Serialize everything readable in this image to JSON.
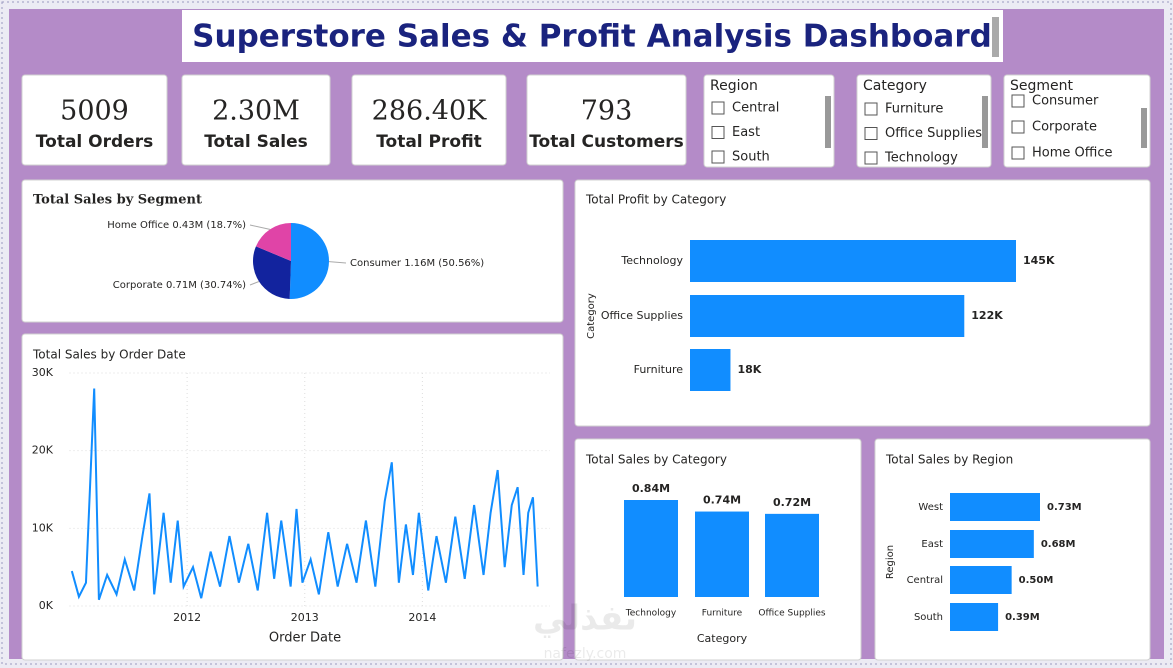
{
  "header": {
    "title": "Superstore Sales & Profit Analysis Dashboard"
  },
  "kpis": [
    {
      "value": "5009",
      "label": "Total Orders"
    },
    {
      "value": "2.30M",
      "label": "Total Sales"
    },
    {
      "value": "286.40K",
      "label": "Total Profit"
    },
    {
      "value": "793",
      "label": "Total Customers"
    }
  ],
  "slicers": [
    {
      "title": "Region",
      "options": [
        "Central",
        "East",
        "South"
      ]
    },
    {
      "title": "Category",
      "options": [
        "Furniture",
        "Office Supplies",
        "Technology"
      ]
    },
    {
      "title": "Segment",
      "options": [
        "Consumer",
        "Corporate",
        "Home Office"
      ]
    }
  ],
  "chart_data": [
    {
      "type": "pie",
      "title": "Total Sales by Segment",
      "categories": [
        "Consumer",
        "Corporate",
        "Home Office"
      ],
      "values": [
        50.56,
        30.74,
        18.7
      ],
      "value_labels": [
        "1.16M (50.56%)",
        "0.71M (30.74%)",
        "0.43M (18.7%)"
      ],
      "colors": [
        "#118DFF",
        "#12239E",
        "#E044A7"
      ]
    },
    {
      "type": "line",
      "title": "Total Sales by Order Date",
      "xlabel": "Order Date",
      "x": [
        2011.02,
        2011.08,
        2011.14,
        2011.21,
        2011.25,
        2011.32,
        2011.4,
        2011.47,
        2011.55,
        2011.62,
        2011.68,
        2011.72,
        2011.8,
        2011.86,
        2011.92,
        2011.97,
        2012.05,
        2012.12,
        2012.2,
        2012.28,
        2012.36,
        2012.44,
        2012.52,
        2012.6,
        2012.68,
        2012.74,
        2012.8,
        2012.88,
        2012.93,
        2012.98,
        2013.05,
        2013.12,
        2013.2,
        2013.28,
        2013.36,
        2013.44,
        2013.52,
        2013.6,
        2013.68,
        2013.74,
        2013.8,
        2013.86,
        2013.92,
        2013.97,
        2014.05,
        2014.12,
        2014.2,
        2014.28,
        2014.36,
        2014.44,
        2014.52,
        2014.58,
        2014.64,
        2014.7,
        2014.76,
        2014.81,
        2014.86,
        2014.9,
        2014.94,
        2014.98
      ],
      "values": [
        4500,
        1200,
        3000,
        28000,
        800,
        4000,
        1500,
        6000,
        2000,
        9000,
        14500,
        1500,
        12000,
        3000,
        11000,
        2500,
        5000,
        1000,
        7000,
        2500,
        9000,
        3000,
        8000,
        2000,
        12000,
        3500,
        11000,
        2500,
        12500,
        3000,
        6000,
        1500,
        9500,
        2500,
        8000,
        3000,
        11000,
        2500,
        13500,
        18500,
        3000,
        10500,
        4000,
        12000,
        2000,
        9000,
        3000,
        11500,
        3500,
        13000,
        4000,
        12000,
        17500,
        5000,
        13000,
        15300,
        4000,
        12000,
        14000,
        2500
      ],
      "color": "#118DFF",
      "xlim": [
        2011,
        2015
      ],
      "ylim": [
        0,
        30000
      ],
      "xticks": [
        2012,
        2013,
        2014
      ],
      "yticks": [
        {
          "value": 0,
          "label": "0K"
        },
        {
          "value": 10000,
          "label": "10K"
        },
        {
          "value": 20000,
          "label": "20K"
        },
        {
          "value": 30000,
          "label": "30K"
        }
      ],
      "grid": true
    },
    {
      "type": "barh",
      "title": "Total Profit by Category",
      "ylabel": "Category",
      "categories": [
        "Technology",
        "Office Supplies",
        "Furniture"
      ],
      "values": [
        145000,
        122000,
        18000
      ],
      "value_labels": [
        "145K",
        "122K",
        "18K"
      ],
      "color": "#118DFF"
    },
    {
      "type": "bar",
      "title": "Total Sales by Category",
      "xlabel": "Category",
      "categories": [
        "Technology",
        "Furniture",
        "Office Supplies"
      ],
      "values": [
        840000,
        740000,
        720000
      ],
      "value_labels": [
        "0.84M",
        "0.74M",
        "0.72M"
      ],
      "color": "#118DFF"
    },
    {
      "type": "barh",
      "title": "Total Sales by Region",
      "ylabel": "Region",
      "categories": [
        "West",
        "East",
        "Central",
        "South"
      ],
      "values": [
        730000,
        680000,
        500000,
        390000
      ],
      "value_labels": [
        "0.73M",
        "0.68M",
        "0.50M",
        "0.39M"
      ],
      "color": "#118DFF"
    }
  ],
  "watermark": [
    "نفذلي",
    "nafezly.com"
  ]
}
